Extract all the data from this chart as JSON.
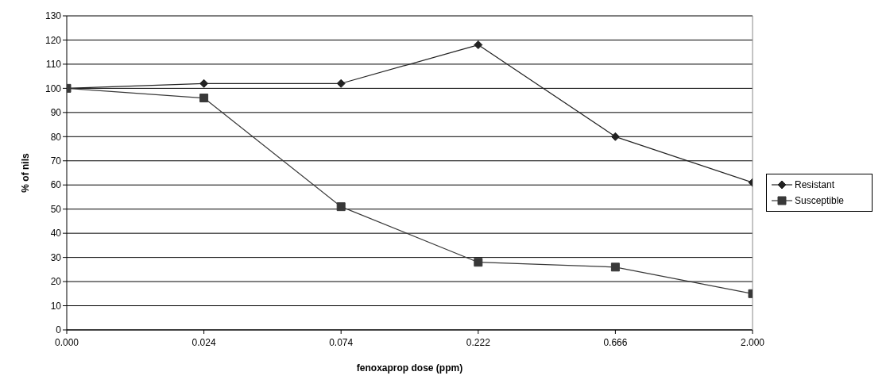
{
  "chart_data": {
    "type": "line",
    "xlabel": "fenoxaprop dose (ppm)",
    "ylabel": "% of nils",
    "categories": [
      "0.000",
      "0.024",
      "0.074",
      "0.222",
      "0.666",
      "2.000"
    ],
    "series": [
      {
        "name": "Resistant",
        "color": "#222222",
        "marker": "diamond",
        "values": [
          100,
          102,
          102,
          118,
          80,
          61
        ]
      },
      {
        "name": "Susceptible",
        "color": "#383838",
        "marker": "square",
        "values": [
          100,
          96,
          51,
          28,
          26,
          15
        ]
      }
    ],
    "ylim": [
      0,
      130
    ],
    "yticks": [
      0,
      10,
      20,
      30,
      40,
      50,
      60,
      70,
      80,
      90,
      100,
      110,
      120,
      130
    ],
    "grid": "y",
    "legend": "right",
    "line_style": "solid"
  }
}
